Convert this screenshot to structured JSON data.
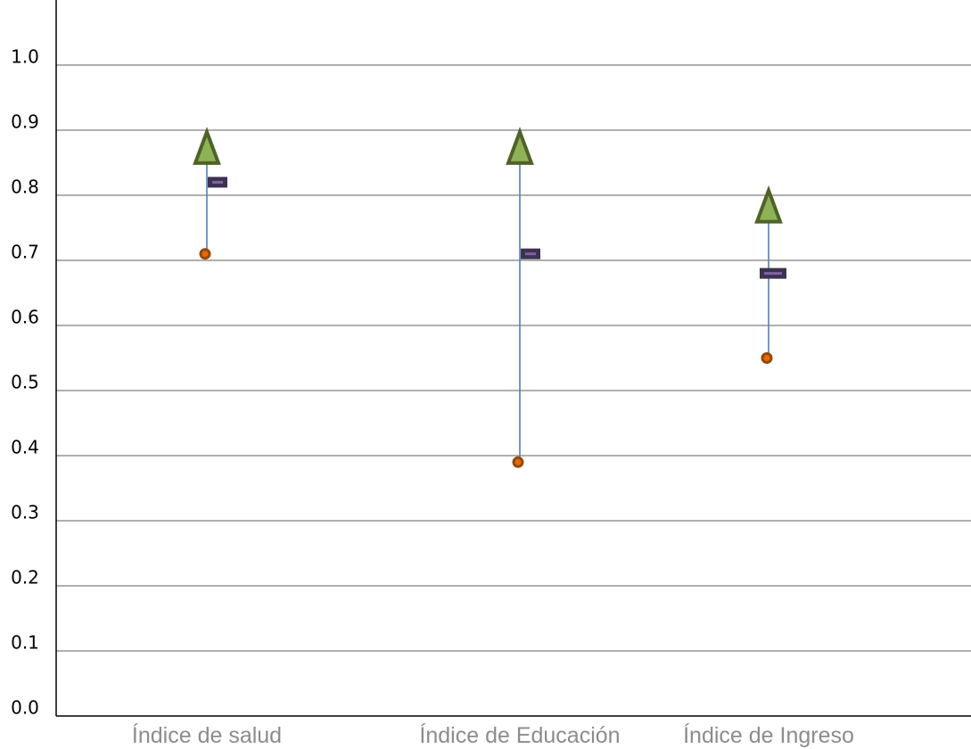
{
  "chart_data": {
    "type": "scatter",
    "title": "",
    "xlabel": "",
    "ylabel": "",
    "ylim": [
      0.0,
      1.0
    ],
    "yticks": [
      "0.0",
      "0.1",
      "0.2",
      "0.3",
      "0.4",
      "0.5",
      "0.6",
      "0.7",
      "0.8",
      "0.9",
      "1.0"
    ],
    "grid": true,
    "legend": "none",
    "categories": [
      "Índice de salud",
      "Índice de Educación",
      "Índice de Ingreso"
    ],
    "series": [
      {
        "marker": "triangle",
        "color": "#8db356",
        "stroke": "#4f6228",
        "values": [
          0.87,
          0.87,
          0.78
        ]
      },
      {
        "marker": "dash",
        "color": "#3f3151",
        "stroke": "#8064a2",
        "values": [
          0.82,
          0.71,
          0.68
        ]
      },
      {
        "marker": "circle",
        "color": "#e36c09",
        "stroke": "#974806",
        "values": [
          0.71,
          0.39,
          0.55
        ]
      }
    ],
    "range_line_color": "#4f81bd"
  }
}
